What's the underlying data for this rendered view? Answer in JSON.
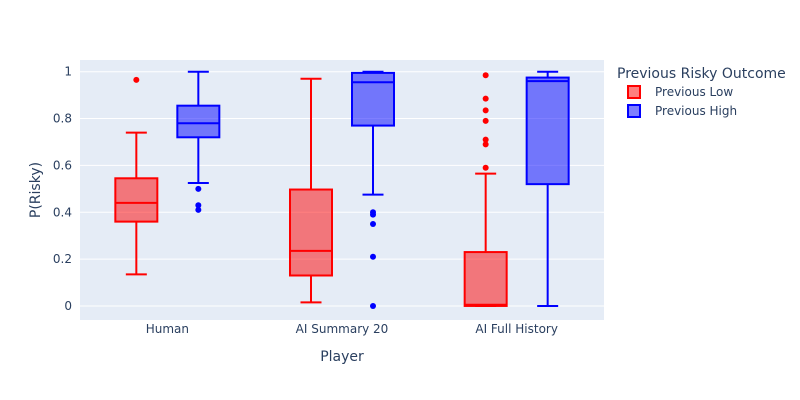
{
  "chart_data": {
    "type": "box",
    "xlabel": "Player",
    "ylabel": "P(Risky)",
    "ylim": [
      -0.06,
      1.05
    ],
    "yticks": [
      0,
      0.2,
      0.4,
      0.6,
      0.8,
      1
    ],
    "ytick_labels": [
      "0",
      "0.2",
      "0.4",
      "0.6",
      "0.8",
      "1"
    ],
    "categories": [
      "Human",
      "AI Summary 20",
      "AI Full History"
    ],
    "legend": {
      "title": "Previous Risky Outcome",
      "placement": "right"
    },
    "series": [
      {
        "name": "Previous Low",
        "color": "#ff0000",
        "fill": "rgba(255,0,0,0.5)",
        "boxes": [
          {
            "category": "Human",
            "lowerfence": 0.135,
            "q1": 0.36,
            "median": 0.44,
            "q3": 0.545,
            "upperfence": 0.74,
            "outliers": [
              0.965
            ]
          },
          {
            "category": "AI Summary 20",
            "lowerfence": 0.015,
            "q1": 0.13,
            "median": 0.235,
            "q3": 0.497,
            "upperfence": 0.97,
            "outliers": []
          },
          {
            "category": "AI Full History",
            "lowerfence": 0.0,
            "q1": 0.0,
            "median": 0.005,
            "q3": 0.23,
            "upperfence": 0.565,
            "outliers": [
              0.59,
              0.69,
              0.71,
              0.79,
              0.835,
              0.885,
              0.985
            ]
          }
        ]
      },
      {
        "name": "Previous High",
        "color": "#0000ff",
        "fill": "rgba(0,0,255,0.5)",
        "boxes": [
          {
            "category": "Human",
            "lowerfence": 0.525,
            "q1": 0.72,
            "median": 0.78,
            "q3": 0.855,
            "upperfence": 1.0,
            "outliers": [
              0.41,
              0.43,
              0.5
            ]
          },
          {
            "category": "AI Summary 20",
            "lowerfence": 0.475,
            "q1": 0.77,
            "median": 0.955,
            "q3": 0.995,
            "upperfence": 1.0,
            "outliers": [
              0.0,
              0.21,
              0.35,
              0.39,
              0.4
            ]
          },
          {
            "category": "AI Full History",
            "lowerfence": 0.0,
            "q1": 0.52,
            "median": 0.96,
            "q3": 0.975,
            "upperfence": 1.0,
            "outliers": []
          }
        ]
      }
    ],
    "grid": true,
    "plot_background": "#e5ecf6"
  }
}
